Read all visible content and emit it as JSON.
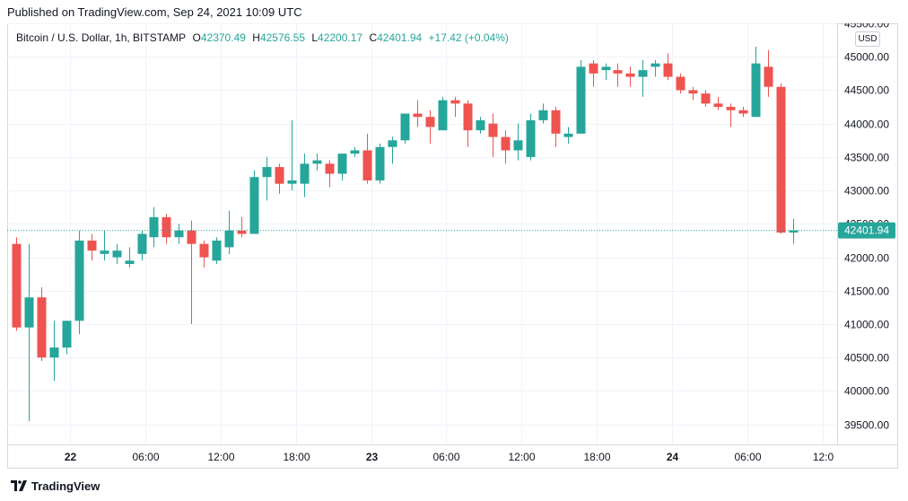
{
  "header": {
    "published": "Published on TradingView.com, Sep 24, 2021 10:09 UTC"
  },
  "legend": {
    "symbol": "Bitcoin / U.S. Dollar, 1h, BITSTAMP",
    "open_label": "O",
    "open": "42370.49",
    "high_label": "H",
    "high": "42576.55",
    "low_label": "L",
    "low": "42200.17",
    "close_label": "C",
    "close": "42401.94",
    "change": "+17.42 (+0.04%)"
  },
  "currency_button": "USD",
  "footer": {
    "brand": "TradingView"
  },
  "colors": {
    "up": "#26a69a",
    "down": "#ef5350",
    "text": "#131722",
    "grid": "#f0f3fa",
    "border": "#d6d8de"
  },
  "chart_data": {
    "type": "candlestick",
    "title": "Bitcoin / U.S. Dollar, 1h, BITSTAMP",
    "ylim": [
      39200,
      45500
    ],
    "y_ticks": [
      "45500.00",
      "45000.00",
      "44500.00",
      "44000.00",
      "43500.00",
      "43000.00",
      "42500.00",
      "42000.00",
      "41500.00",
      "41000.00",
      "40500.00",
      "40000.00",
      "39500.00"
    ],
    "x_ticks": [
      {
        "label": "22",
        "index": 4.33
      },
      {
        "label": "06:00",
        "index": 10.33
      },
      {
        "label": "12:00",
        "index": 16.33
      },
      {
        "label": "18:00",
        "index": 22.33
      },
      {
        "label": "23",
        "index": 28.33
      },
      {
        "label": "06:00",
        "index": 34.33
      },
      {
        "label": "12:00",
        "index": 40.33
      },
      {
        "label": "18:00",
        "index": 46.33
      },
      {
        "label": "24",
        "index": 52.33
      },
      {
        "label": "06:00",
        "index": 58.33
      },
      {
        "label": "12:0",
        "index": 64.33
      }
    ],
    "x_range": [
      -0.7,
      65.5
    ],
    "last_price_label": "42401.94",
    "last_price": 42401.94,
    "grid": true,
    "candles": [
      {
        "o": 42200,
        "h": 42300,
        "l": 40900,
        "c": 40950
      },
      {
        "o": 40950,
        "h": 42200,
        "l": 39550,
        "c": 41400
      },
      {
        "o": 41400,
        "h": 41550,
        "l": 40450,
        "c": 40500
      },
      {
        "o": 40500,
        "h": 41050,
        "l": 40150,
        "c": 40650
      },
      {
        "o": 40650,
        "h": 41050,
        "l": 40550,
        "c": 41050
      },
      {
        "o": 41050,
        "h": 42400,
        "l": 40850,
        "c": 42250
      },
      {
        "o": 42250,
        "h": 42350,
        "l": 41950,
        "c": 42100
      },
      {
        "o": 42050,
        "h": 42400,
        "l": 41950,
        "c": 42100
      },
      {
        "o": 42000,
        "h": 42200,
        "l": 41900,
        "c": 42100
      },
      {
        "o": 41900,
        "h": 42150,
        "l": 41850,
        "c": 41950
      },
      {
        "o": 42050,
        "h": 42400,
        "l": 41950,
        "c": 42350
      },
      {
        "o": 42300,
        "h": 42750,
        "l": 42150,
        "c": 42600
      },
      {
        "o": 42600,
        "h": 42650,
        "l": 42200,
        "c": 42300
      },
      {
        "o": 42300,
        "h": 42500,
        "l": 42200,
        "c": 42400
      },
      {
        "o": 42400,
        "h": 42550,
        "l": 41000,
        "c": 42200
      },
      {
        "o": 42200,
        "h": 42250,
        "l": 41850,
        "c": 42000
      },
      {
        "o": 41950,
        "h": 42300,
        "l": 41900,
        "c": 42250
      },
      {
        "o": 42150,
        "h": 42700,
        "l": 42050,
        "c": 42400
      },
      {
        "o": 42400,
        "h": 42600,
        "l": 42300,
        "c": 42350
      },
      {
        "o": 42350,
        "h": 43300,
        "l": 42350,
        "c": 43200
      },
      {
        "o": 43200,
        "h": 43500,
        "l": 42850,
        "c": 43350
      },
      {
        "o": 43350,
        "h": 43400,
        "l": 42950,
        "c": 43100
      },
      {
        "o": 43100,
        "h": 44050,
        "l": 43000,
        "c": 43150
      },
      {
        "o": 43100,
        "h": 43550,
        "l": 42900,
        "c": 43400
      },
      {
        "o": 43400,
        "h": 43550,
        "l": 43300,
        "c": 43450
      },
      {
        "o": 43400,
        "h": 43450,
        "l": 43050,
        "c": 43250
      },
      {
        "o": 43250,
        "h": 43550,
        "l": 43150,
        "c": 43550
      },
      {
        "o": 43550,
        "h": 43650,
        "l": 43500,
        "c": 43600
      },
      {
        "o": 43600,
        "h": 43850,
        "l": 43100,
        "c": 43150
      },
      {
        "o": 43150,
        "h": 43700,
        "l": 43100,
        "c": 43650
      },
      {
        "o": 43650,
        "h": 43800,
        "l": 43400,
        "c": 43750
      },
      {
        "o": 43750,
        "h": 44150,
        "l": 43700,
        "c": 44150
      },
      {
        "o": 44150,
        "h": 44350,
        "l": 43950,
        "c": 44100
      },
      {
        "o": 44100,
        "h": 44200,
        "l": 43700,
        "c": 43950
      },
      {
        "o": 43900,
        "h": 44400,
        "l": 43900,
        "c": 44350
      },
      {
        "o": 44350,
        "h": 44400,
        "l": 44100,
        "c": 44300
      },
      {
        "o": 44300,
        "h": 44350,
        "l": 43650,
        "c": 43900
      },
      {
        "o": 43900,
        "h": 44100,
        "l": 43850,
        "c": 44050
      },
      {
        "o": 44000,
        "h": 44150,
        "l": 43500,
        "c": 43800
      },
      {
        "o": 43800,
        "h": 43900,
        "l": 43400,
        "c": 43600
      },
      {
        "o": 43600,
        "h": 44000,
        "l": 43450,
        "c": 43750
      },
      {
        "o": 43500,
        "h": 44150,
        "l": 43450,
        "c": 44050
      },
      {
        "o": 44050,
        "h": 44300,
        "l": 44000,
        "c": 44200
      },
      {
        "o": 44200,
        "h": 44250,
        "l": 43650,
        "c": 43850
      },
      {
        "o": 43800,
        "h": 43950,
        "l": 43700,
        "c": 43850
      },
      {
        "o": 43850,
        "h": 44950,
        "l": 43850,
        "c": 44850
      },
      {
        "o": 44900,
        "h": 44950,
        "l": 44550,
        "c": 44750
      },
      {
        "o": 44800,
        "h": 44900,
        "l": 44650,
        "c": 44850
      },
      {
        "o": 44800,
        "h": 44900,
        "l": 44550,
        "c": 44750
      },
      {
        "o": 44750,
        "h": 44850,
        "l": 44550,
        "c": 44700
      },
      {
        "o": 44700,
        "h": 44950,
        "l": 44400,
        "c": 44800
      },
      {
        "o": 44850,
        "h": 44950,
        "l": 44700,
        "c": 44900
      },
      {
        "o": 44900,
        "h": 45050,
        "l": 44650,
        "c": 44700
      },
      {
        "o": 44700,
        "h": 44750,
        "l": 44450,
        "c": 44500
      },
      {
        "o": 44500,
        "h": 44550,
        "l": 44350,
        "c": 44450
      },
      {
        "o": 44450,
        "h": 44500,
        "l": 44250,
        "c": 44300
      },
      {
        "o": 44300,
        "h": 44400,
        "l": 44200,
        "c": 44250
      },
      {
        "o": 44250,
        "h": 44300,
        "l": 43950,
        "c": 44200
      },
      {
        "o": 44200,
        "h": 44250,
        "l": 44100,
        "c": 44150
      },
      {
        "o": 44100,
        "h": 45150,
        "l": 44100,
        "c": 44900
      },
      {
        "o": 44850,
        "h": 45100,
        "l": 44400,
        "c": 44550
      },
      {
        "o": 44550,
        "h": 44600,
        "l": 42350,
        "c": 42370
      },
      {
        "o": 42370.49,
        "h": 42576.55,
        "l": 42200.17,
        "c": 42401.94
      }
    ]
  }
}
